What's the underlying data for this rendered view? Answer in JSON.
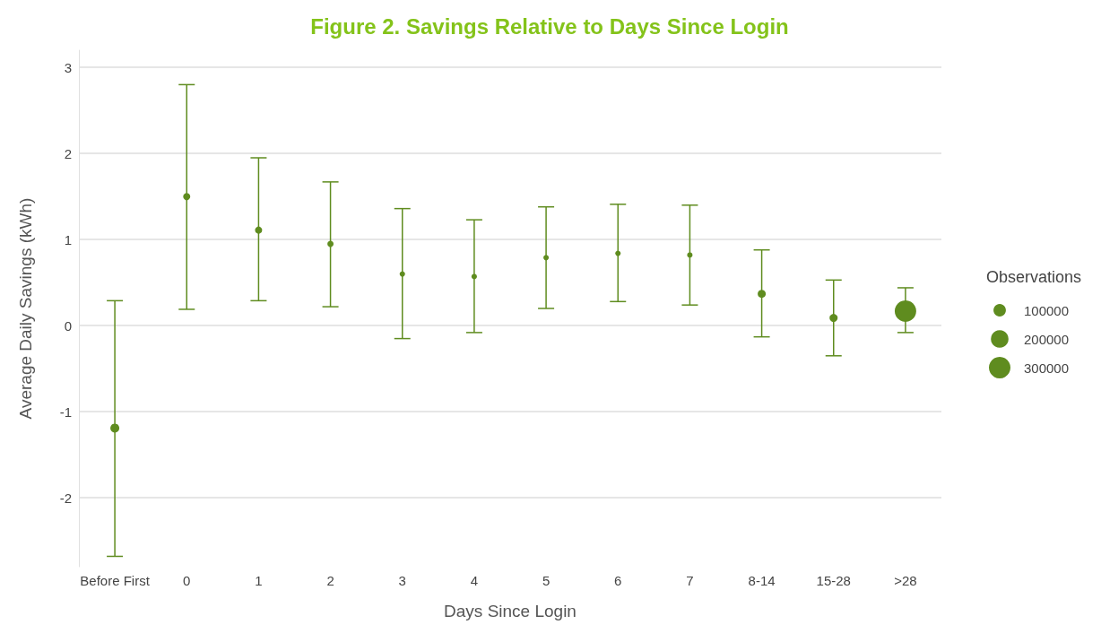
{
  "chart_data": {
    "type": "bubble",
    "title": "Figure 2. Savings Relative to Days Since Login",
    "xlabel": "Days Since Login",
    "ylabel": "Average Daily Savings (kWh)",
    "legend_title": "Observations",
    "categories": [
      "Before First",
      "0",
      "1",
      "2",
      "3",
      "4",
      "5",
      "6",
      "7",
      "8-14",
      "15-28",
      ">28"
    ],
    "series": [
      {
        "color": "#5f8c1f",
        "values": [
          -1.19,
          1.5,
          1.11,
          0.95,
          0.6,
          0.57,
          0.79,
          0.84,
          0.82,
          0.37,
          0.09,
          0.17
        ],
        "sizes": [
          52000,
          33000,
          33000,
          25000,
          19000,
          19000,
          19000,
          19000,
          19000,
          42000,
          42000,
          300000
        ],
        "errors": [
          [
            -2.68,
            0.29
          ],
          [
            0.19,
            2.8
          ],
          [
            0.29,
            1.95
          ],
          [
            0.22,
            1.67
          ],
          [
            -0.15,
            1.36
          ],
          [
            -0.08,
            1.23
          ],
          [
            0.2,
            1.38
          ],
          [
            0.28,
            1.41
          ],
          [
            0.24,
            1.4
          ],
          [
            -0.13,
            0.88
          ],
          [
            -0.35,
            0.53
          ],
          [
            -0.08,
            0.44
          ]
        ]
      }
    ],
    "size_legend": [
      100000,
      200000,
      300000
    ],
    "ylim": [
      -2.8,
      3.2
    ],
    "yticks": [
      -2,
      -1,
      0,
      1,
      2,
      3
    ],
    "grid": "y"
  }
}
